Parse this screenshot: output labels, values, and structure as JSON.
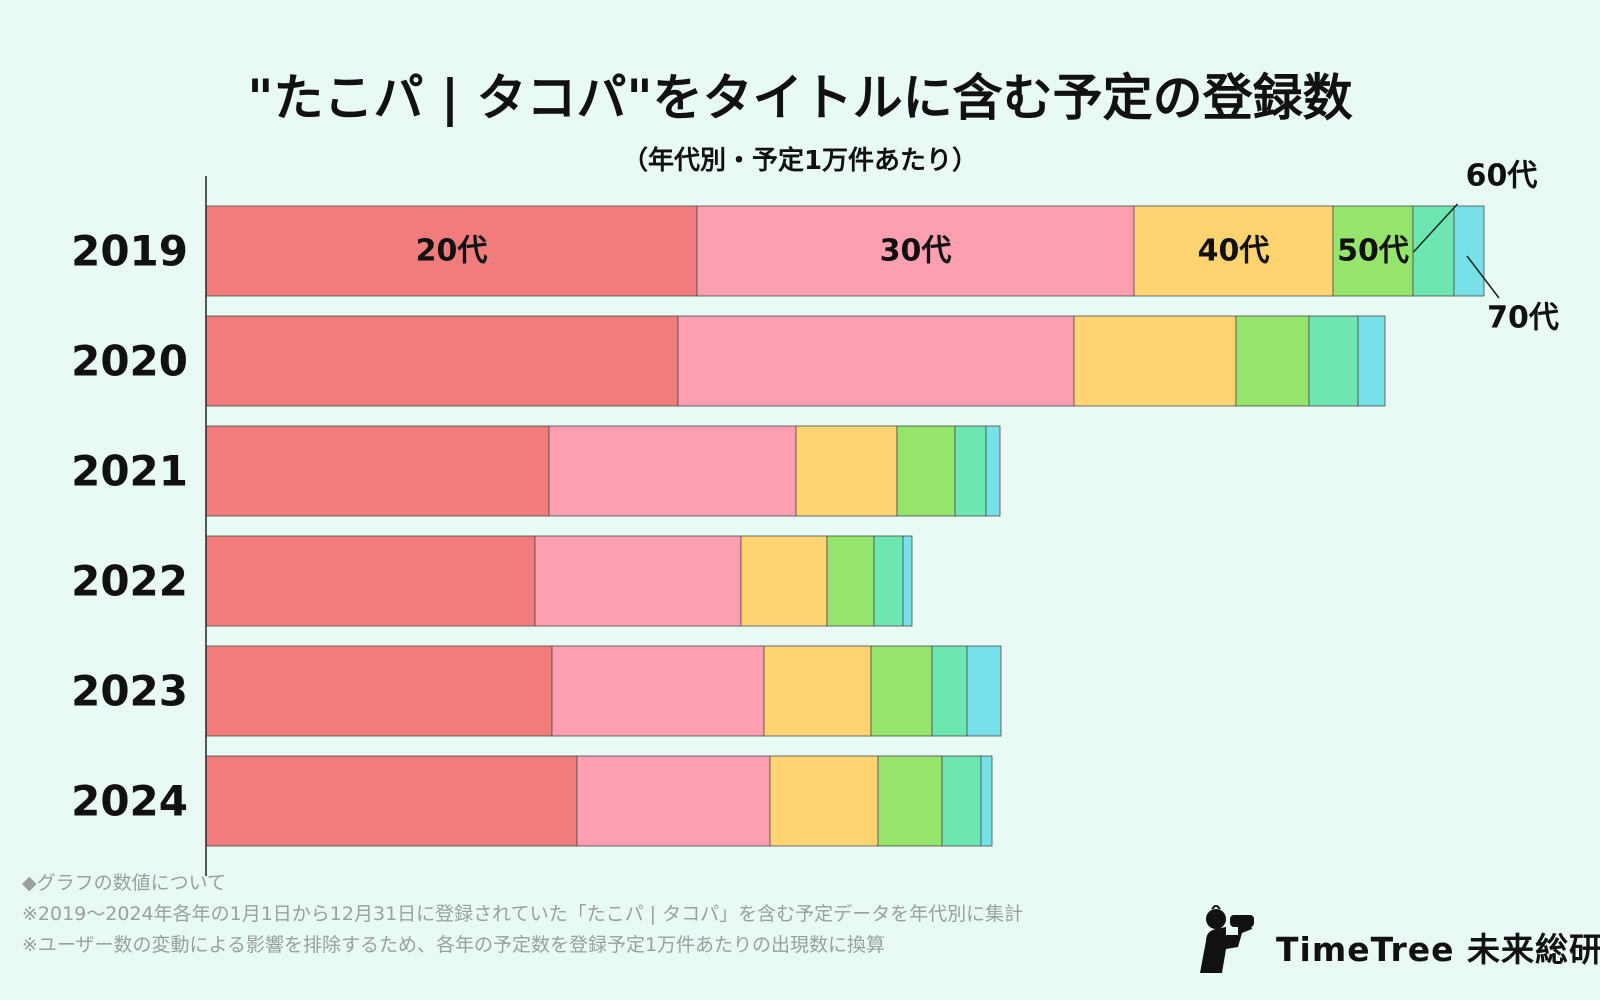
{
  "chart_data": {
    "type": "bar",
    "orientation": "horizontal-stacked",
    "title": "\"たこパ | タコパ\"をタイトルに含む予定の登録数",
    "subtitle": "（年代別・予定1万件あたり）",
    "categories": [
      "2019",
      "2020",
      "2021",
      "2022",
      "2023",
      "2024"
    ],
    "series": [
      {
        "name": "20代",
        "color": "#f17c7c",
        "values": [
          491,
          472,
          343,
          329,
          346,
          371
        ]
      },
      {
        "name": "30代",
        "color": "#fe9eb1",
        "values": [
          437,
          396,
          247,
          206,
          212,
          193
        ]
      },
      {
        "name": "40代",
        "color": "#fed472",
        "values": [
          199,
          162,
          101,
          86,
          107,
          108
        ]
      },
      {
        "name": "50代",
        "color": "#95e56c",
        "values": [
          80,
          73,
          58,
          47,
          61,
          64
        ]
      },
      {
        "name": "60代",
        "color": "#6de6b2",
        "values": [
          41,
          49,
          31,
          29,
          35,
          39
        ]
      },
      {
        "name": "70代",
        "color": "#78e0e8",
        "values": [
          30,
          27,
          14,
          9,
          34,
          11
        ]
      }
    ],
    "segment_labels_row": "2019",
    "callout_labels": [
      "60代",
      "70代"
    ],
    "legend": "none",
    "grid": false
  },
  "notes": [
    "◆グラフの数値について",
    "※2019〜2024年各年の1月1日から12月31日に登録されていた「たこパ | タコパ」を含む予定データを年代別に集計",
    "※ユーザー数の変動による影響を排除するため、各年の予定数を登録予定1万件あたりの出現数に換算"
  ],
  "brand": {
    "name": "TimeTree 未来総研",
    "logo_icon": "person-with-binoculars-icon"
  }
}
